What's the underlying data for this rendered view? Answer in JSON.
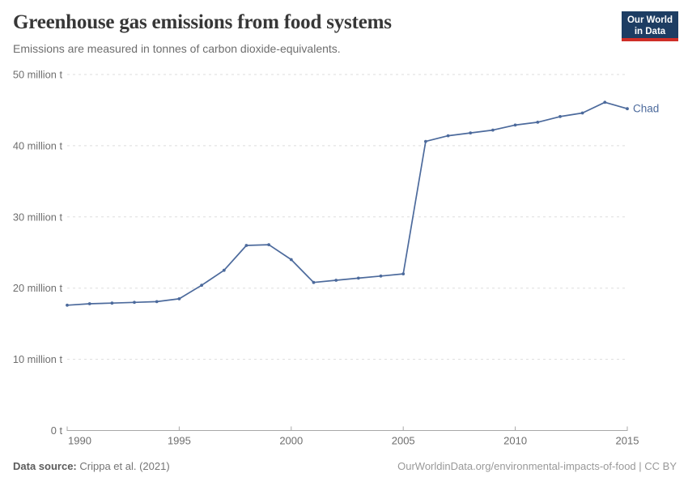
{
  "header": {
    "title": "Greenhouse gas emissions from food systems",
    "subtitle": "Emissions are measured in tonnes of carbon dioxide-equivalents.",
    "logo": {
      "line1": "Our World",
      "line2": "in Data"
    }
  },
  "chart_data": {
    "type": "line",
    "title": "Greenhouse gas emissions from food systems",
    "unit": "tonnes of carbon dioxide-equivalents",
    "x": [
      1990,
      1991,
      1992,
      1993,
      1994,
      1995,
      1996,
      1997,
      1998,
      1999,
      2000,
      2001,
      2002,
      2003,
      2004,
      2005,
      2006,
      2007,
      2008,
      2009,
      2010,
      2011,
      2012,
      2013,
      2014,
      2015
    ],
    "series": [
      {
        "name": "Chad",
        "color": "#4c6a9c",
        "values": [
          17.6,
          17.8,
          17.9,
          18.0,
          18.1,
          18.5,
          20.4,
          22.5,
          26.0,
          26.1,
          24.0,
          20.8,
          21.1,
          21.4,
          21.7,
          22.0,
          40.6,
          41.4,
          41.8,
          42.2,
          42.9,
          43.3,
          44.1,
          44.6,
          46.1,
          45.2
        ]
      }
    ],
    "xlim": [
      1990,
      2015
    ],
    "ylim": [
      0,
      50
    ],
    "xticks": [
      1990,
      1995,
      2000,
      2005,
      2010,
      2015
    ],
    "yticks": [
      {
        "value": 0,
        "label": "0 t"
      },
      {
        "value": 10,
        "label": "10 million t"
      },
      {
        "value": 20,
        "label": "20 million t"
      },
      {
        "value": 30,
        "label": "30 million t"
      },
      {
        "value": 40,
        "label": "40 million t"
      },
      {
        "value": 50,
        "label": "50 million t"
      }
    ],
    "grid": "horizontal-dashed",
    "legend_position": "end-of-line",
    "end_label": "Chad"
  },
  "colors": {
    "line": "#4c6a9c",
    "grid": "#dedede",
    "axis": "#a8a8a8",
    "tick_label": "#6e6e6e",
    "logo_bg": "#1d3d63",
    "logo_bar": "#cf2e27"
  },
  "footer": {
    "datasource_label": "Data source:",
    "datasource_value": "Crippa et al. (2021)",
    "credit": "OurWorldinData.org/environmental-impacts-of-food | CC BY"
  }
}
